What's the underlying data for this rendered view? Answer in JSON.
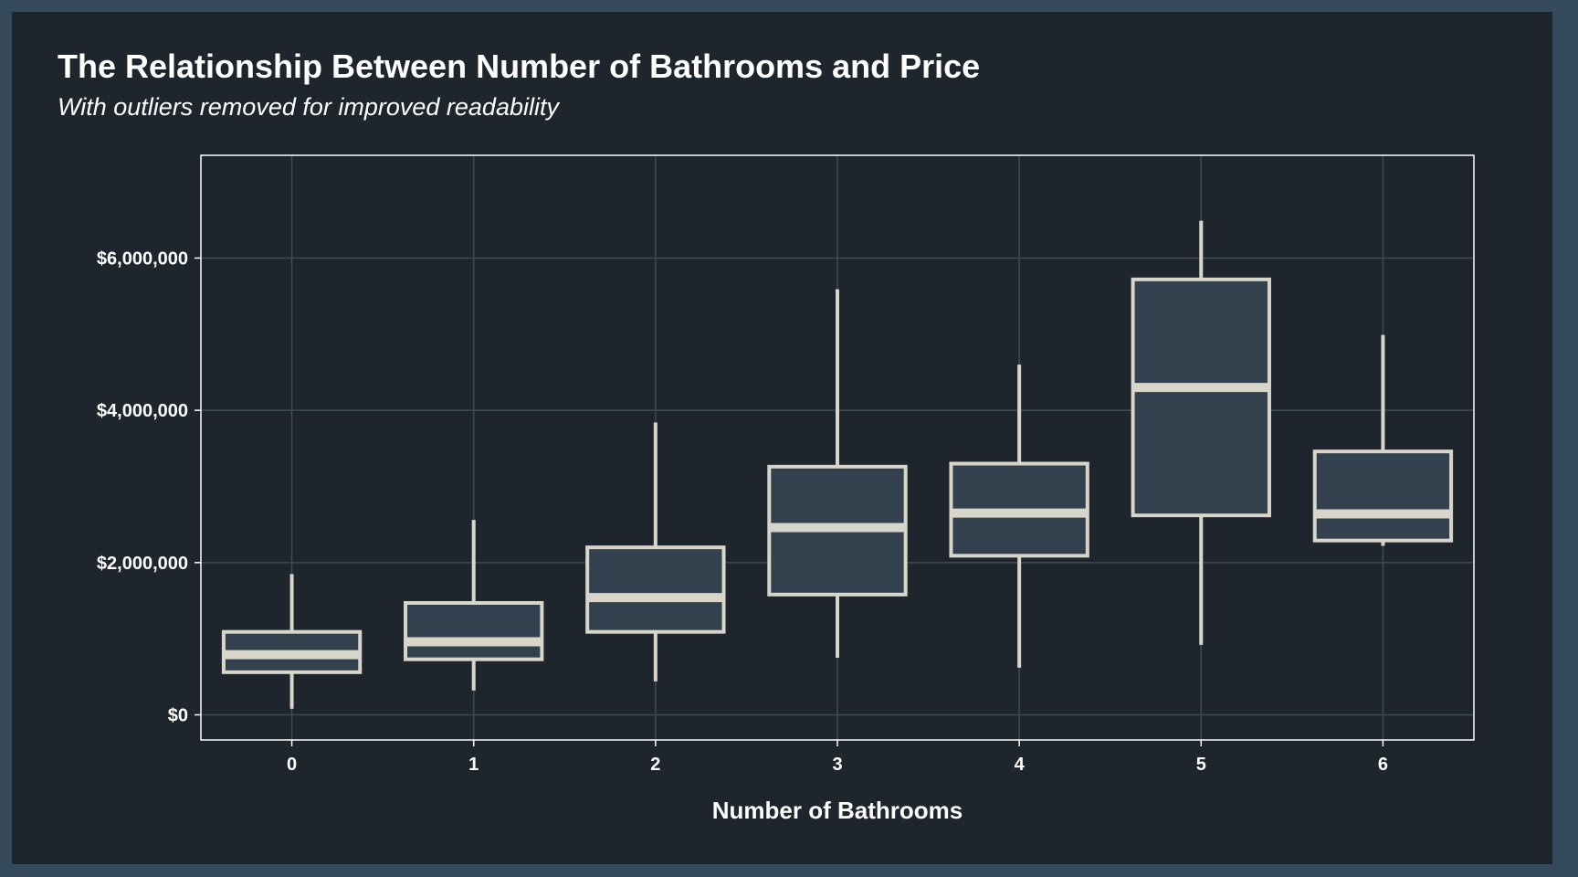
{
  "chart_data": {
    "type": "boxplot",
    "title": "The Relationship Between Number of Bathrooms and Price",
    "subtitle": "With outliers removed for improved readability",
    "xlabel": "Number of Bathrooms",
    "ylabel": "",
    "categories": [
      "0",
      "1",
      "2",
      "3",
      "4",
      "5",
      "6"
    ],
    "y_ticks": [
      {
        "value": 0,
        "label": "$0"
      },
      {
        "value": 2000000,
        "label": "$2,000,000"
      },
      {
        "value": 4000000,
        "label": "$4,000,000"
      },
      {
        "value": 6000000,
        "label": "$6,000,000"
      }
    ],
    "ylim": [
      -330000,
      7350000
    ],
    "grid": true,
    "boxes": [
      {
        "category": "0",
        "min": 80000,
        "q1": 560000,
        "median": 790000,
        "q3": 1090000,
        "max": 1850000
      },
      {
        "category": "1",
        "min": 320000,
        "q1": 730000,
        "median": 960000,
        "q3": 1470000,
        "max": 2560000
      },
      {
        "category": "2",
        "min": 440000,
        "q1": 1090000,
        "median": 1540000,
        "q3": 2200000,
        "max": 3840000
      },
      {
        "category": "3",
        "min": 750000,
        "q1": 1580000,
        "median": 2460000,
        "q3": 3260000,
        "max": 5590000
      },
      {
        "category": "4",
        "min": 620000,
        "q1": 2090000,
        "median": 2650000,
        "q3": 3300000,
        "max": 4600000
      },
      {
        "category": "5",
        "min": 920000,
        "q1": 2620000,
        "median": 4300000,
        "q3": 5720000,
        "max": 6490000
      },
      {
        "category": "6",
        "min": 2220000,
        "q1": 2290000,
        "median": 2640000,
        "q3": 3460000,
        "max": 4990000
      }
    ],
    "colors": {
      "page_border": "#34495a",
      "background": "#1f252d",
      "box_fill": "#33414f",
      "box_stroke": "#d8d6cb",
      "grid": "#3e4b57",
      "panel_border": "#ffffff",
      "text": "#ffffff"
    }
  }
}
